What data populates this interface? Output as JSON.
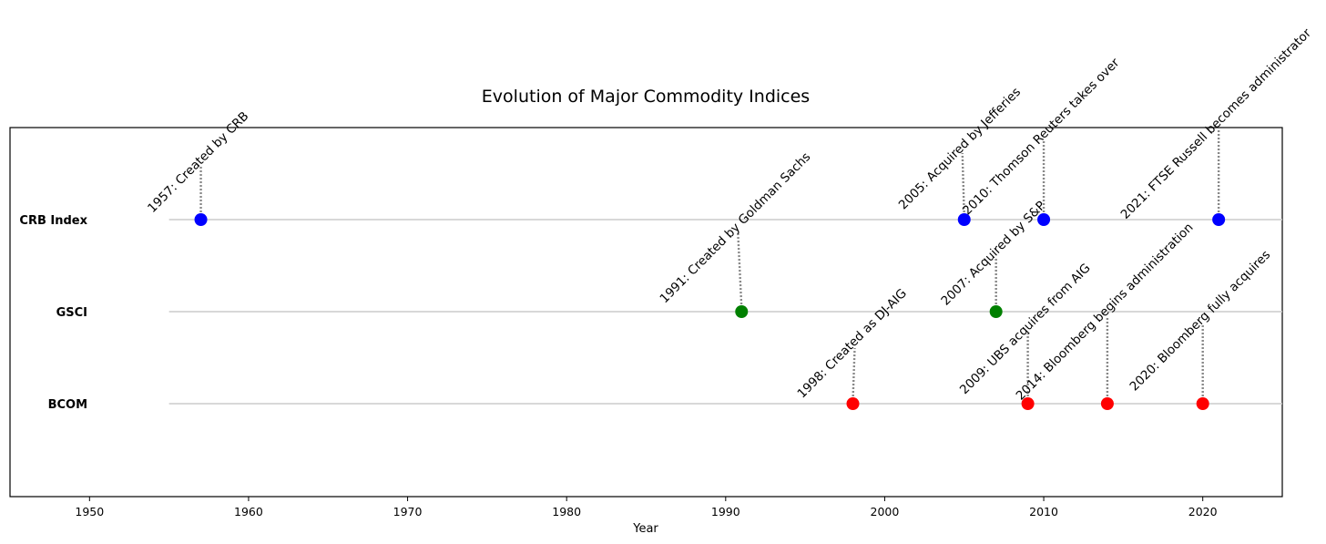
{
  "chart_data": {
    "type": "scatter",
    "title": "Evolution of Major Commodity Indices",
    "xlabel": "Year",
    "ylabel": "",
    "xlim": [
      1945,
      2025
    ],
    "x_ticks": [
      "1950",
      "1960",
      "1970",
      "1980",
      "1990",
      "2000",
      "2010",
      "2020"
    ],
    "grid": false,
    "series": [
      {
        "name": "CRB Index",
        "color": "#0000ff",
        "events": [
          {
            "year": 1957,
            "label": "1957: Created by CRB"
          },
          {
            "year": 2005,
            "label": "2005: Acquired by Jefferies"
          },
          {
            "year": 2010,
            "label": "2010: Thomson Reuters takes over"
          },
          {
            "year": 2021,
            "label": "2021: FTSE Russell becomes administrator"
          }
        ]
      },
      {
        "name": "GSCI",
        "color": "#008000",
        "events": [
          {
            "year": 1991,
            "label": "1991: Created by Goldman Sachs"
          },
          {
            "year": 2007,
            "label": "2007: Acquired by S&P"
          }
        ]
      },
      {
        "name": "BCOM",
        "color": "#ff0000",
        "events": [
          {
            "year": 1998,
            "label": "1998: Created as DJ-AIG"
          },
          {
            "year": 2009,
            "label": "2009: UBS acquires from AIG"
          },
          {
            "year": 2014,
            "label": "2014: Bloomberg begins administration"
          },
          {
            "year": 2020,
            "label": "2020: Bloomberg fully acquires"
          }
        ]
      }
    ]
  }
}
